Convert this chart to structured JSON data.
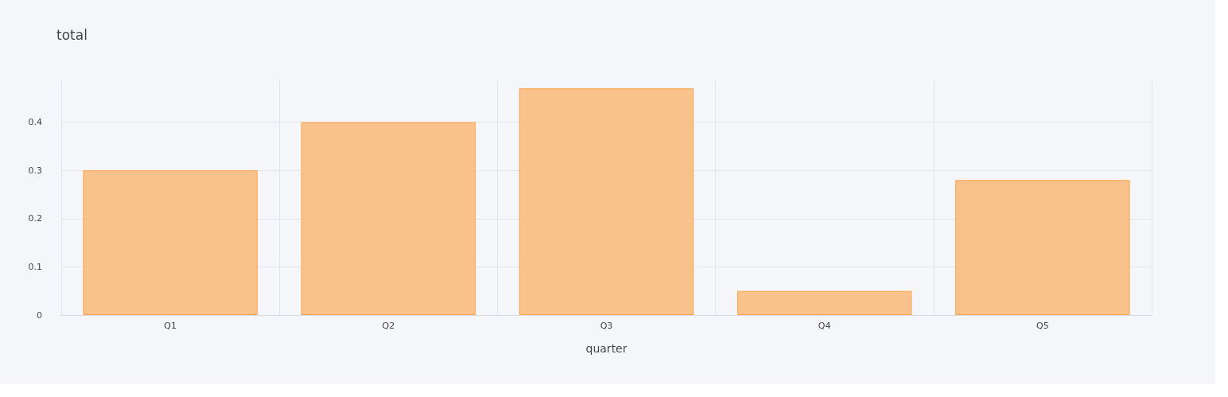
{
  "chart_data": {
    "type": "bar",
    "title": "total",
    "xlabel": "quarter",
    "categories": [
      "Q1",
      "Q2",
      "Q3",
      "Q4",
      "Q5"
    ],
    "values": [
      0.3,
      0.4,
      0.47,
      0.05,
      0.28
    ],
    "color": "#f9be86",
    "ylim": [
      0,
      0.49
    ],
    "yticks": [
      0,
      0.1,
      0.2,
      0.3,
      0.4
    ],
    "grid": true
  }
}
